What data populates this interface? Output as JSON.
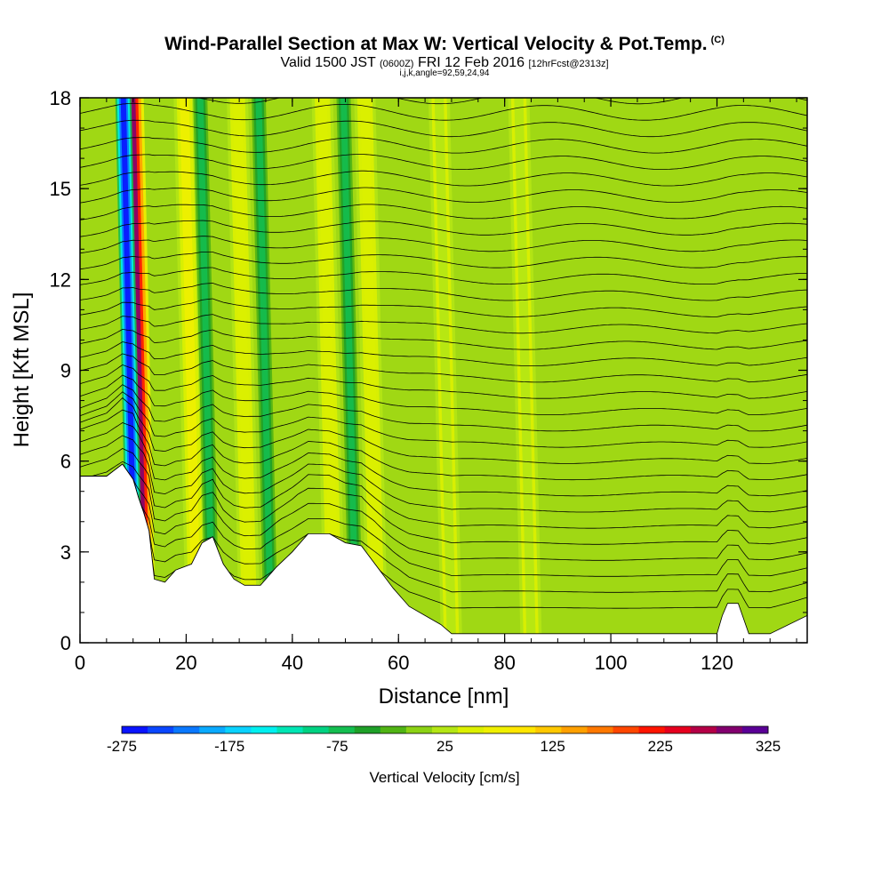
{
  "header": {
    "title": "Wind-Parallel Section at Max W: Vertical Velocity & Pot.Temp.",
    "copyright": "(C)",
    "valid_prefix": "Valid 1500 JST",
    "valid_utc": "(0600Z)",
    "valid_date": "FRI 12 Feb 2016",
    "forecast": "[12hrFcst@2313z]",
    "params": "i,j,k,angle=92,59,24,94"
  },
  "colorbar": {
    "label": "Vertical Velocity [cm/s]",
    "tick_labels": [
      "-275",
      "-175",
      "-75",
      "25",
      "125",
      "225",
      "325"
    ],
    "colors": [
      "#0a14ff",
      "#0a46ff",
      "#0a78ff",
      "#0aaaff",
      "#0ad2ff",
      "#00f0f0",
      "#00e6b4",
      "#00d282",
      "#14be50",
      "#1ea028",
      "#50b414",
      "#8cd214",
      "#b4e614",
      "#dcf000",
      "#f0f000",
      "#ffe600",
      "#ffc800",
      "#ffa000",
      "#ff7800",
      "#ff4600",
      "#ff1400",
      "#e6001e",
      "#b40046",
      "#82006e",
      "#5a0096"
    ]
  },
  "chart_data": {
    "type": "contour",
    "xlabel": "Distance [nm]",
    "ylabel": "Height [Kft MSL]",
    "xlim": [
      0,
      137
    ],
    "ylim": [
      0,
      18
    ],
    "xticks": [
      "0",
      "20",
      "40",
      "60",
      "80",
      "100",
      "120"
    ],
    "yticks": [
      "0",
      "3",
      "6",
      "9",
      "12",
      "15",
      "18"
    ],
    "fill_variable": "Vertical Velocity [cm/s]",
    "contour_variable": "Potential Temperature",
    "terrain_profile": {
      "x": [
        0,
        5,
        8,
        10,
        11,
        12,
        13,
        14,
        16,
        18,
        21,
        23,
        25,
        27,
        29,
        31,
        34,
        37,
        40,
        43,
        47,
        50,
        53,
        56,
        59,
        62,
        65,
        68,
        70,
        80,
        90,
        100,
        110,
        120,
        121,
        122,
        124,
        126,
        130,
        137
      ],
      "y": [
        5.5,
        5.5,
        5.9,
        5.4,
        4.8,
        4.3,
        3.7,
        2.1,
        2.0,
        2.4,
        2.6,
        3.3,
        3.5,
        2.6,
        2.1,
        1.9,
        1.9,
        2.5,
        3.0,
        3.6,
        3.6,
        3.3,
        3.2,
        2.5,
        1.8,
        1.2,
        0.9,
        0.6,
        0.3,
        0.3,
        0.3,
        0.3,
        0.3,
        0.3,
        0.9,
        1.3,
        1.3,
        0.3,
        0.3,
        0.9
      ]
    },
    "updraft_bands": [
      {
        "x": 12,
        "w_max": 300
      },
      {
        "x": 22,
        "w_max": 75
      },
      {
        "x": 32,
        "w_max": 60
      },
      {
        "x": 48,
        "w_max": 60
      },
      {
        "x": 56,
        "w_max": 60
      },
      {
        "x": 70,
        "w_max": 25
      },
      {
        "x": 85,
        "w_max": 25
      }
    ],
    "downdraft_bands": [
      {
        "x": 10.5,
        "w_min": -275
      },
      {
        "x": 25,
        "w_min": -75
      },
      {
        "x": 36,
        "w_min": -75
      },
      {
        "x": 52,
        "w_min": -75
      }
    ]
  }
}
